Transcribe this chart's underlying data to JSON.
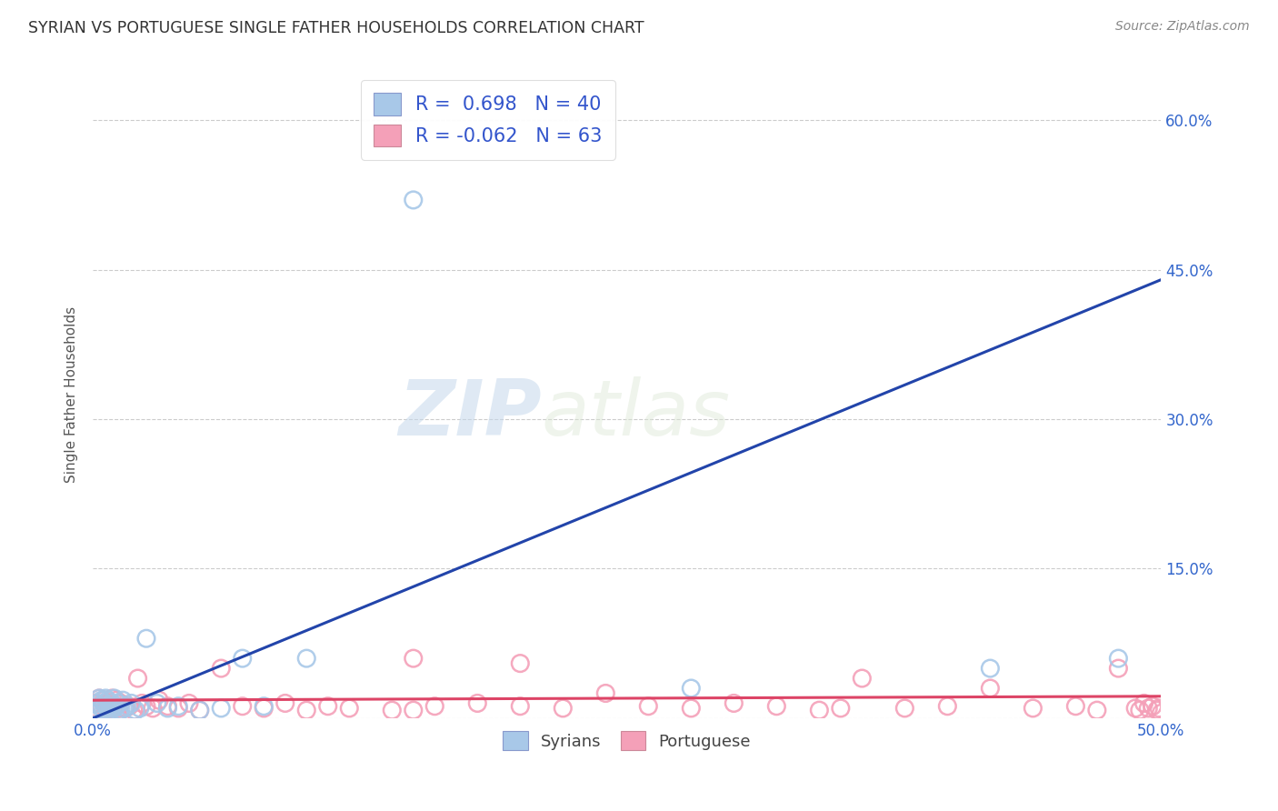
{
  "title": "SYRIAN VS PORTUGUESE SINGLE FATHER HOUSEHOLDS CORRELATION CHART",
  "source": "Source: ZipAtlas.com",
  "ylabel": "Single Father Households",
  "xlim": [
    0.0,
    0.5
  ],
  "ylim": [
    0.0,
    0.65
  ],
  "xticks": [
    0.0,
    0.1,
    0.2,
    0.3,
    0.4,
    0.5
  ],
  "yticks": [
    0.0,
    0.15,
    0.3,
    0.45,
    0.6
  ],
  "xtick_labels": [
    "0.0%",
    "",
    "",
    "",
    "",
    "50.0%"
  ],
  "right_ytick_labels": [
    "60.0%",
    "45.0%",
    "30.0%",
    "15.0%"
  ],
  "right_ytick_positions": [
    0.6,
    0.45,
    0.3,
    0.15
  ],
  "syrian_color": "#a8c8e8",
  "portuguese_color": "#f4a0b8",
  "syrian_line_color": "#2244aa",
  "portuguese_line_color": "#dd4466",
  "legend_syrian_R": " 0.698",
  "legend_syrian_N": "40",
  "legend_portuguese_R": "-0.062",
  "legend_portuguese_N": "63",
  "watermark_zip": "ZIP",
  "watermark_atlas": "atlas",
  "syrian_line_x0": 0.0,
  "syrian_line_y0": 0.0,
  "syrian_line_x1": 0.5,
  "syrian_line_y1": 0.44,
  "portuguese_line_x0": 0.0,
  "portuguese_line_y0": 0.018,
  "portuguese_line_x1": 0.5,
  "portuguese_line_y1": 0.022,
  "syrian_points_x": [
    0.001,
    0.002,
    0.002,
    0.003,
    0.003,
    0.004,
    0.004,
    0.005,
    0.005,
    0.006,
    0.006,
    0.007,
    0.007,
    0.008,
    0.008,
    0.009,
    0.01,
    0.01,
    0.011,
    0.012,
    0.013,
    0.014,
    0.015,
    0.016,
    0.018,
    0.02,
    0.022,
    0.025,
    0.03,
    0.035,
    0.04,
    0.05,
    0.06,
    0.07,
    0.08,
    0.1,
    0.15,
    0.28,
    0.42,
    0.48
  ],
  "syrian_points_y": [
    0.01,
    0.008,
    0.015,
    0.012,
    0.02,
    0.01,
    0.018,
    0.008,
    0.015,
    0.012,
    0.02,
    0.01,
    0.018,
    0.012,
    0.008,
    0.015,
    0.01,
    0.02,
    0.012,
    0.015,
    0.008,
    0.018,
    0.01,
    0.012,
    0.015,
    0.008,
    0.01,
    0.08,
    0.015,
    0.01,
    0.012,
    0.008,
    0.01,
    0.06,
    0.012,
    0.06,
    0.52,
    0.03,
    0.05,
    0.06
  ],
  "portuguese_points_x": [
    0.001,
    0.002,
    0.003,
    0.004,
    0.005,
    0.006,
    0.007,
    0.008,
    0.009,
    0.01,
    0.011,
    0.012,
    0.013,
    0.015,
    0.017,
    0.019,
    0.021,
    0.023,
    0.025,
    0.028,
    0.031,
    0.035,
    0.04,
    0.045,
    0.05,
    0.06,
    0.07,
    0.08,
    0.09,
    0.1,
    0.11,
    0.12,
    0.14,
    0.15,
    0.16,
    0.18,
    0.2,
    0.22,
    0.24,
    0.26,
    0.28,
    0.3,
    0.32,
    0.34,
    0.36,
    0.38,
    0.4,
    0.42,
    0.44,
    0.46,
    0.47,
    0.48,
    0.488,
    0.49,
    0.492,
    0.494,
    0.496,
    0.498,
    0.499,
    0.5,
    0.15,
    0.2,
    0.35
  ],
  "portuguese_points_y": [
    0.015,
    0.01,
    0.02,
    0.012,
    0.018,
    0.008,
    0.015,
    0.01,
    0.02,
    0.012,
    0.018,
    0.01,
    0.015,
    0.01,
    0.012,
    0.008,
    0.04,
    0.015,
    0.012,
    0.01,
    0.018,
    0.012,
    0.01,
    0.015,
    0.008,
    0.05,
    0.012,
    0.01,
    0.015,
    0.008,
    0.012,
    0.01,
    0.008,
    0.06,
    0.012,
    0.015,
    0.055,
    0.01,
    0.025,
    0.012,
    0.01,
    0.015,
    0.012,
    0.008,
    0.04,
    0.01,
    0.012,
    0.03,
    0.01,
    0.012,
    0.008,
    0.05,
    0.01,
    0.008,
    0.015,
    0.01,
    0.012,
    0.008,
    0.01,
    0.005,
    0.008,
    0.012,
    0.01
  ]
}
